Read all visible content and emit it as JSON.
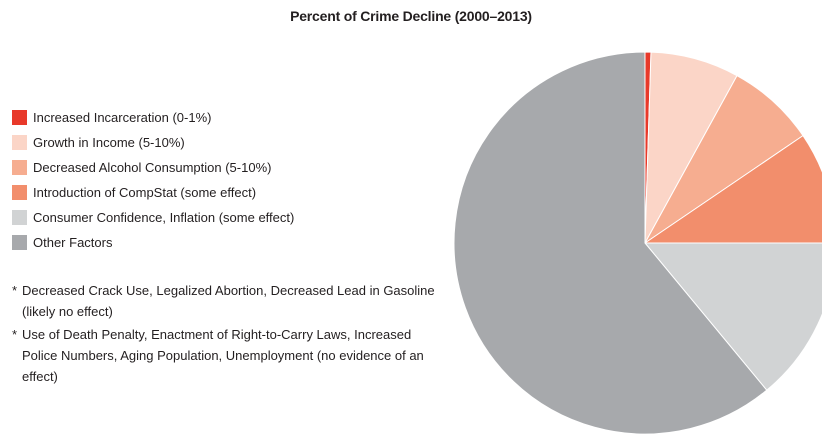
{
  "chart_data": {
    "type": "pie",
    "title": "Percent of Crime Decline (2000–2013)",
    "slices": [
      {
        "label": "Increased Incarceration (0-1%)",
        "value": 0.5,
        "color": "#e8392a"
      },
      {
        "label": "Growth in Income (5-10%)",
        "value": 7.5,
        "color": "#fbd5c7"
      },
      {
        "label": "Decreased Alcohol Consumption (5-10%)",
        "value": 7.5,
        "color": "#f6ad90"
      },
      {
        "label": "Introduction of CompStat (some effect)",
        "value": 9.5,
        "color": "#f28e6c"
      },
      {
        "label": "Consumer Confidence, Inflation (some effect)",
        "value": 14,
        "color": "#d1d3d4"
      },
      {
        "label": "Other Factors",
        "value": 61,
        "color": "#a7a9ac"
      }
    ],
    "legend_placement": "left",
    "start_angle": "top, clockwise"
  },
  "notes": [
    {
      "bullet": "*",
      "text": "Decreased Crack Use, Legalized Abortion, Decreased Lead in Gasoline (likely no effect)"
    },
    {
      "bullet": "*",
      "text": "Use of Death Penalty, Enactment of Right-to-Carry Laws, Increased Police Numbers, Aging Population, Unemployment (no evidence of an effect)"
    }
  ]
}
